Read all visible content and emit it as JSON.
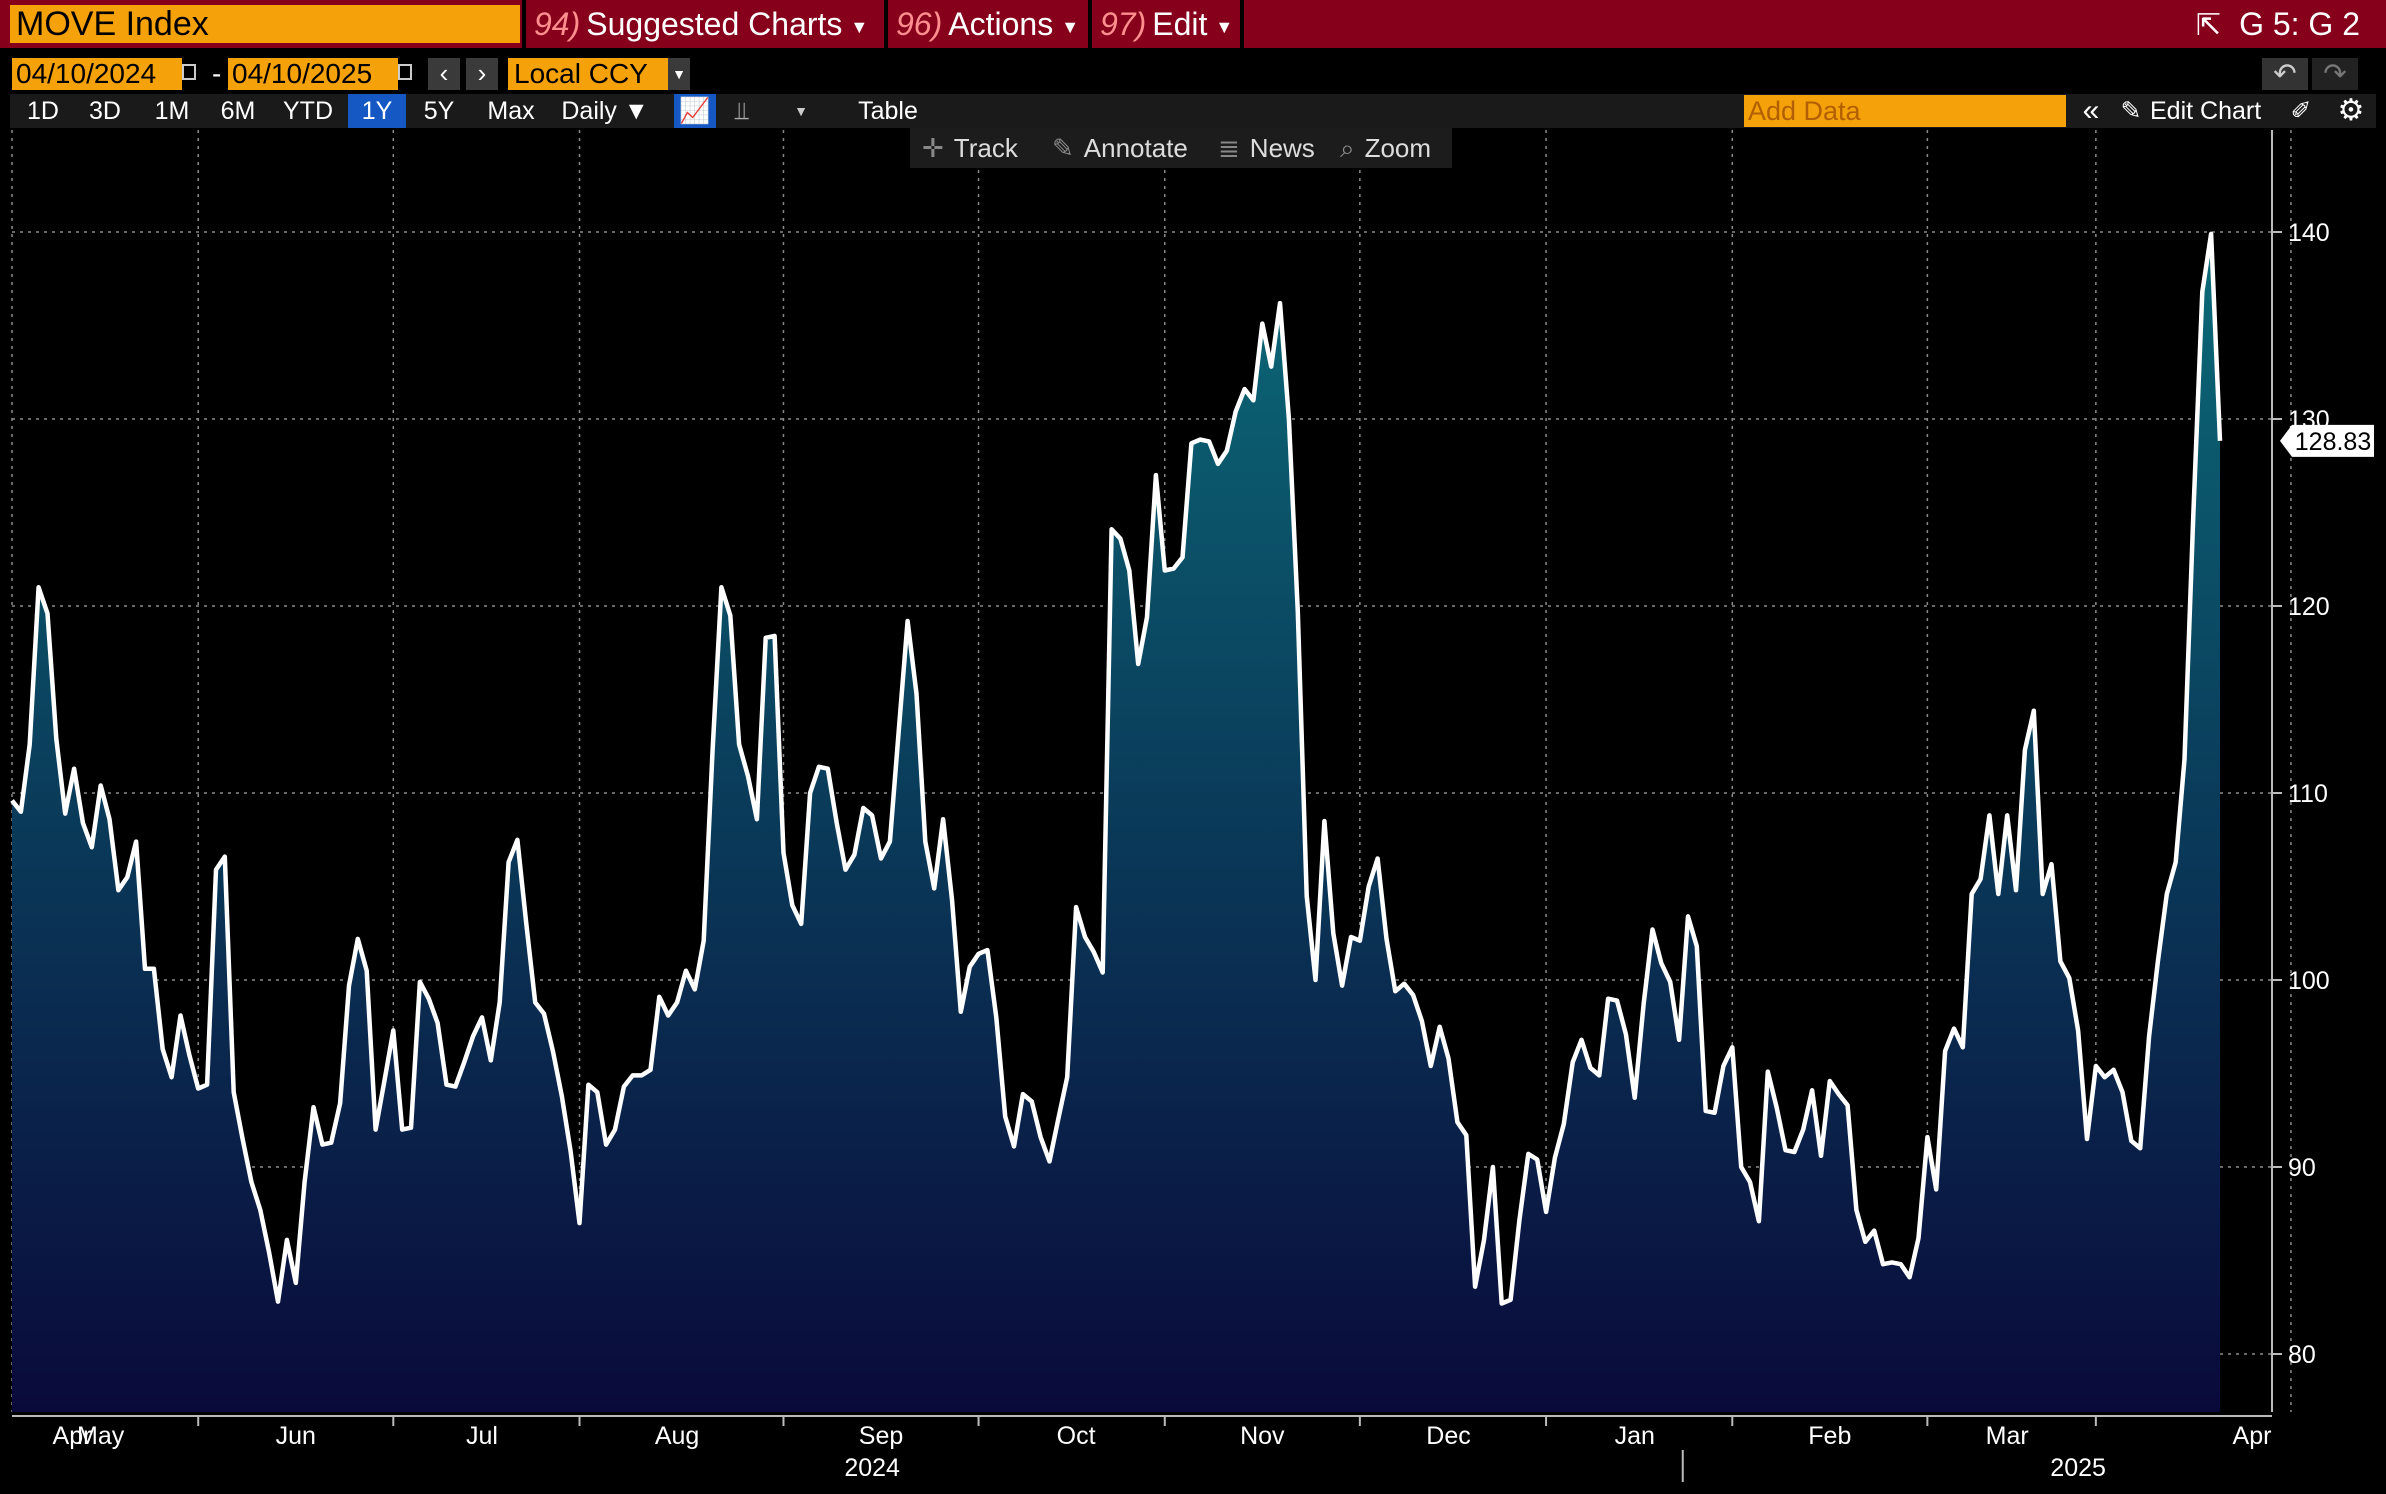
{
  "header": {
    "ticker": "MOVE Index",
    "menus": [
      {
        "num": "94)",
        "label": "Suggested Charts"
      },
      {
        "num": "96)",
        "label": "Actions"
      },
      {
        "num": "97)",
        "label": "Edit"
      }
    ],
    "page_id": "G 5: G 2"
  },
  "range": {
    "start_date": "04/10/2024",
    "separator": "-",
    "end_date": "04/10/2025",
    "currency": "Local CCY"
  },
  "toolbar": {
    "periods": [
      "1D",
      "3D",
      "1M",
      "6M",
      "YTD",
      "1Y",
      "5Y",
      "Max"
    ],
    "active_period": "1Y",
    "frequency": "Daily ▼",
    "table_label": "Table",
    "add_data_placeholder": "Add Data",
    "edit_chart_label": "Edit Chart"
  },
  "chart_menu": {
    "track": "Track",
    "annotate": "Annotate",
    "news": "News",
    "zoom": "Zoom"
  },
  "colors": {
    "header_red": "#86001b",
    "accent_orange": "#f5a10a",
    "line": "#ffffff",
    "fill_top": "#0b6a78",
    "fill_bottom": "#0a0a3a"
  },
  "chart_data": {
    "type": "area",
    "series": [
      {
        "name": "MOVE Index",
        "last_value_label": "128.83",
        "values": [
          109.6,
          109.0,
          112.6,
          121.0,
          119.6,
          112.9,
          108.9,
          111.3,
          108.4,
          107.1,
          110.4,
          108.6,
          104.8,
          105.5,
          107.4,
          100.6,
          100.6,
          96.3,
          94.8,
          98.1,
          96.0,
          94.2,
          94.4,
          105.9,
          106.6,
          94.0,
          91.5,
          89.2,
          87.7,
          85.4,
          82.8,
          86.1,
          83.8,
          89.2,
          93.2,
          91.2,
          91.3,
          93.4,
          99.7,
          102.2,
          100.5,
          92.0,
          94.6,
          97.3,
          92.0,
          92.1,
          99.9,
          99.0,
          97.7,
          94.4,
          94.3,
          95.6,
          97.0,
          98.0,
          95.7,
          98.8,
          106.3,
          107.5,
          103.0,
          98.8,
          98.2,
          96.2,
          93.8,
          90.8,
          87.0,
          94.4,
          94.0,
          91.2,
          92.0,
          94.3,
          94.9,
          94.9,
          95.2,
          99.1,
          98.1,
          98.8,
          100.5,
          99.5,
          102.1,
          112.2,
          121.0,
          119.5,
          112.6,
          110.9,
          108.6,
          118.3,
          118.4,
          106.8,
          104.0,
          103.0,
          110.0,
          111.4,
          111.3,
          108.4,
          105.9,
          106.7,
          109.2,
          108.8,
          106.5,
          107.4,
          113.3,
          119.2,
          115.3,
          107.4,
          104.9,
          108.6,
          104.3,
          98.3,
          100.7,
          101.4,
          101.6,
          98.0,
          92.7,
          91.1,
          93.9,
          93.5,
          91.6,
          90.3,
          92.6,
          94.8,
          103.9,
          102.3,
          101.5,
          100.4,
          124.1,
          123.6,
          121.9,
          116.9,
          119.4,
          127.0,
          121.9,
          122.0,
          122.6,
          128.7,
          128.9,
          128.8,
          127.6,
          128.3,
          130.4,
          131.6,
          131.0,
          135.1,
          132.8,
          136.2,
          130.0,
          119.7,
          104.5,
          100.0,
          108.5,
          102.5,
          99.7,
          102.3,
          102.1,
          105.0,
          106.5,
          102.2,
          99.4,
          99.8,
          99.2,
          97.8,
          95.4,
          97.5,
          95.8,
          92.4,
          91.7,
          83.6,
          86.1,
          90.0,
          82.7,
          82.9,
          87.2,
          90.7,
          90.4,
          87.6,
          90.5,
          92.3,
          95.6,
          96.8,
          95.3,
          94.9,
          99.0,
          98.9,
          97.1,
          93.7,
          98.7,
          102.7,
          100.9,
          99.9,
          96.8,
          103.4,
          101.8,
          93.0,
          92.9,
          95.4,
          96.4,
          90.0,
          89.2,
          87.1,
          95.1,
          93.2,
          90.9,
          90.8,
          92.0,
          94.1,
          90.6,
          94.6,
          93.9,
          93.3,
          87.7,
          86.0,
          86.6,
          84.8,
          84.9,
          84.8,
          84.1,
          86.2,
          91.6,
          88.8,
          96.2,
          97.4,
          96.4,
          104.6,
          105.4,
          108.8,
          104.6,
          108.8,
          104.8,
          112.3,
          114.4,
          104.6,
          106.2,
          101.0,
          100.1,
          97.3,
          91.5,
          95.4,
          94.8,
          95.2,
          94.0,
          91.4,
          91.0,
          97.0,
          101.0,
          104.6,
          106.3,
          111.8,
          125.0,
          136.8,
          139.9,
          128.83
        ]
      }
    ],
    "x_start": "2024-04-10",
    "x_end": "2025-04-10",
    "x_month_labels": [
      "Apr",
      "May",
      "Jun",
      "Jul",
      "Aug",
      "Sep",
      "Oct",
      "Nov",
      "Dec",
      "Jan",
      "Feb",
      "Mar",
      "Apr"
    ],
    "x_year_labels": [
      "2024",
      "2025"
    ],
    "y_ticks": [
      80,
      90,
      100,
      110,
      120,
      130,
      140
    ],
    "ylim": [
      77,
      145
    ],
    "grid": true,
    "legend": "none",
    "title": "",
    "xlabel": "",
    "ylabel": ""
  }
}
